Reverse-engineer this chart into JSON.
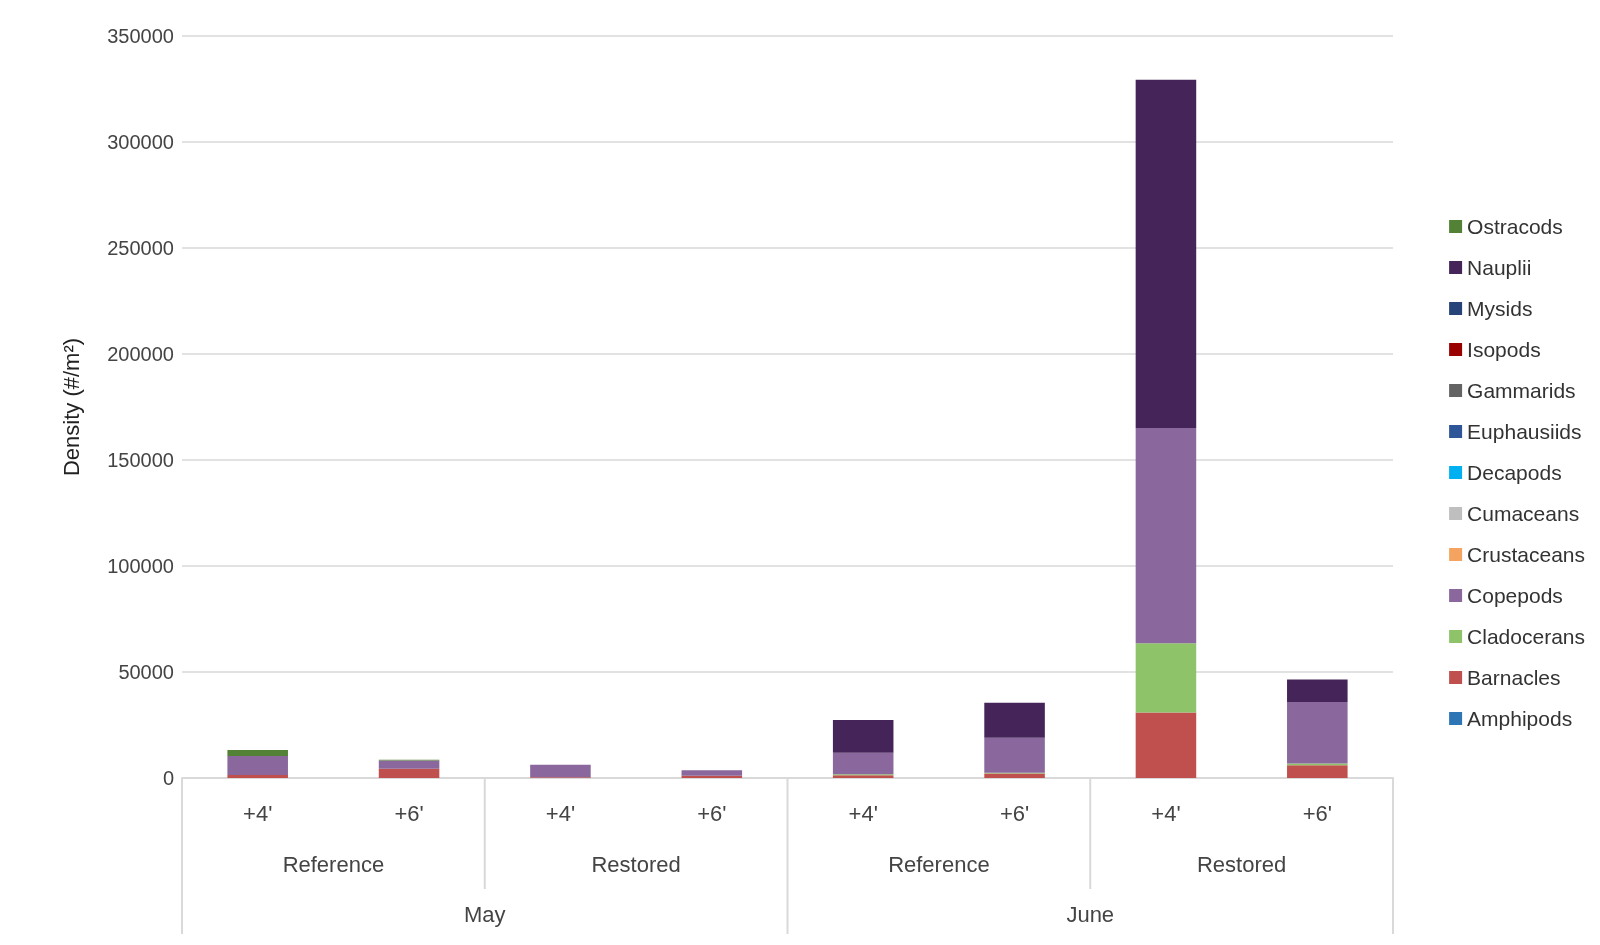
{
  "chart_data": {
    "type": "bar",
    "stacked": true,
    "ylabel": "Density (#/m²)",
    "categories": [
      "+4'",
      "+6'",
      "+4'",
      "+6'",
      "+4'",
      "+6'",
      "+4'",
      "+6'"
    ],
    "annotations": [
      "Reference",
      "Restored",
      "Reference",
      "Restored",
      "May",
      "June"
    ],
    "ylim": [
      0,
      350000
    ],
    "yticks": [
      0,
      50000,
      100000,
      150000,
      200000,
      250000,
      300000,
      350000
    ],
    "grid": "y",
    "legend": "right",
    "series": [
      {
        "name": "Amphipods",
        "color": "#2e75b6",
        "values": [
          0,
          0,
          0,
          0,
          0,
          0,
          0,
          0
        ]
      },
      {
        "name": "Barnacles",
        "color": "#c0504d",
        "values": [
          1400,
          4400,
          300,
          1100,
          1300,
          2100,
          30900,
          6000
        ]
      },
      {
        "name": "Cladocerans",
        "color": "#8fc36a",
        "values": [
          0,
          0,
          0,
          0,
          500,
          400,
          32700,
          800
        ]
      },
      {
        "name": "Copepods",
        "color": "#8a679c",
        "values": [
          9000,
          3800,
          6000,
          2500,
          10100,
          16500,
          101500,
          29000
        ]
      },
      {
        "name": "Crustaceans",
        "color": "#f4a460",
        "values": [
          0,
          0,
          0,
          0,
          0,
          0,
          0,
          0
        ]
      },
      {
        "name": "Cumaceans",
        "color": "#bfbfbf",
        "values": [
          0,
          0,
          0,
          0,
          0,
          0,
          0,
          0
        ]
      },
      {
        "name": "Decapods",
        "color": "#00b0f0",
        "values": [
          0,
          0,
          0,
          0,
          0,
          0,
          0,
          0
        ]
      },
      {
        "name": "Euphausiids",
        "color": "#2e5597",
        "values": [
          0,
          0,
          0,
          0,
          0,
          0,
          0,
          0
        ]
      },
      {
        "name": "Gammarids",
        "color": "#636363",
        "values": [
          0,
          0,
          0,
          0,
          0,
          0,
          0,
          0
        ]
      },
      {
        "name": "Isopods",
        "color": "#990000",
        "values": [
          0,
          0,
          0,
          0,
          0,
          0,
          0,
          0
        ]
      },
      {
        "name": "Mysids",
        "color": "#264478",
        "values": [
          0,
          0,
          0,
          0,
          0,
          0,
          0,
          0
        ]
      },
      {
        "name": "Nauplii",
        "color": "#452459",
        "values": [
          0,
          0,
          0,
          0,
          15400,
          16500,
          164300,
          10700
        ]
      },
      {
        "name": "Ostracods",
        "color": "#538135",
        "values": [
          2800,
          400,
          null,
          null,
          0,
          0,
          0,
          0
        ]
      }
    ]
  }
}
